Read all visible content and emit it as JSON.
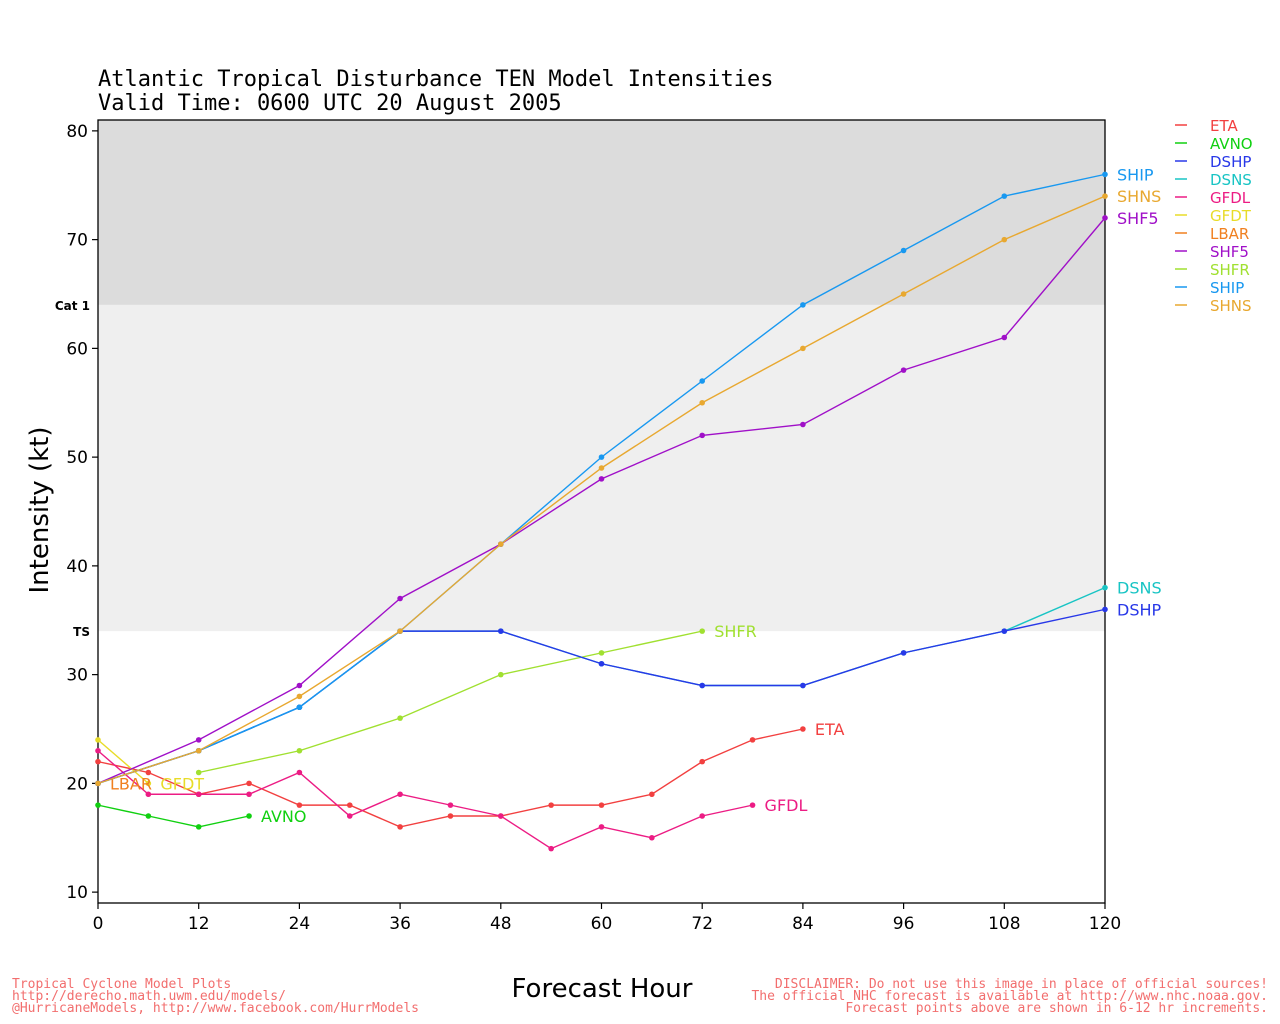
{
  "title_line1": "Atlantic Tropical Disturbance TEN Model Intensities",
  "title_line2": "Valid Time: 0600 UTC 20 August 2005",
  "footer": {
    "left": [
      "Tropical Cyclone Model Plots",
      "http://derecho.math.uwm.edu/models/",
      "@HurricaneModels, http://www.facebook.com/HurrModels"
    ],
    "right": [
      "DISCLAIMER: Do not use this image in place of official sources!",
      "The official NHC forecast is available at http://www.nhc.noaa.gov.",
      "Forecast points above are shown in 6-12 hr increments."
    ]
  },
  "chart_data": {
    "type": "line",
    "xlabel": "Forecast Hour",
    "ylabel": "Intensity (kt)",
    "xlim": [
      0,
      120
    ],
    "ylim": [
      9,
      81
    ],
    "x_ticks": [
      0,
      12,
      24,
      36,
      48,
      60,
      72,
      84,
      96,
      108,
      120
    ],
    "y_ticks": [
      10,
      20,
      30,
      40,
      50,
      60,
      70,
      80
    ],
    "bands": [
      {
        "label": "TS",
        "from": 34,
        "to": 64,
        "color": "#efefef"
      },
      {
        "label": "Cat 1",
        "from": 64,
        "to": 81,
        "color": "#dcdcdc"
      }
    ],
    "legend_position": "right",
    "legend": [
      {
        "name": "ETA",
        "color": "#f24040"
      },
      {
        "name": "AVNO",
        "color": "#10d010"
      },
      {
        "name": "DSHP",
        "color": "#2838e8"
      },
      {
        "name": "DSNS",
        "color": "#18c4c4"
      },
      {
        "name": "GFDL",
        "color": "#ec1c84"
      },
      {
        "name": "GFDT",
        "color": "#e8dc28"
      },
      {
        "name": "LBAR",
        "color": "#f08020"
      },
      {
        "name": "SHF5",
        "color": "#a010c8"
      },
      {
        "name": "SHFR",
        "color": "#a0e030"
      },
      {
        "name": "SHIP",
        "color": "#1898f0"
      },
      {
        "name": "SHNS",
        "color": "#e8a830"
      }
    ],
    "series": [
      {
        "name": "ETA",
        "color": "#f24040",
        "x": [
          0,
          6,
          12,
          18,
          24,
          30,
          36,
          42,
          48,
          54,
          60,
          66,
          72,
          78,
          84
        ],
        "y": [
          22,
          21,
          19,
          20,
          18,
          18,
          16,
          17,
          17,
          18,
          18,
          19,
          22,
          24,
          25
        ],
        "label": "ETA"
      },
      {
        "name": "AVNO",
        "color": "#10d010",
        "x": [
          0,
          6,
          12,
          18
        ],
        "y": [
          18,
          17,
          16,
          17
        ],
        "label": "AVNO"
      },
      {
        "name": "GFDL",
        "color": "#ec1c84",
        "x": [
          0,
          6,
          12,
          18,
          24,
          30,
          36,
          42,
          48,
          54,
          60,
          66,
          72,
          78
        ],
        "y": [
          23,
          19,
          19,
          19,
          21,
          17,
          19,
          18,
          17,
          14,
          16,
          15,
          17,
          18
        ],
        "label": "GFDL"
      },
      {
        "name": "GFDT",
        "color": "#e8dc28",
        "x": [
          0,
          6
        ],
        "y": [
          24,
          20
        ],
        "label": "GFDT"
      },
      {
        "name": "LBAR",
        "color": "#f08020",
        "x": [
          0
        ],
        "y": [
          20
        ],
        "label": "LBAR"
      },
      {
        "name": "SHFR",
        "color": "#a0e030",
        "x": [
          12,
          24,
          36,
          48,
          60,
          72
        ],
        "y": [
          21,
          23,
          26,
          30,
          32,
          34
        ],
        "label": "SHFR"
      },
      {
        "name": "DSNS",
        "color": "#18c4c4",
        "x": [
          0,
          12,
          24,
          36,
          48,
          60,
          72,
          84,
          96,
          108,
          120
        ],
        "y": [
          20,
          23,
          27,
          34,
          34,
          31,
          29,
          29,
          32,
          34,
          38
        ],
        "label": "DSNS"
      },
      {
        "name": "DSHP",
        "color": "#2838e8",
        "x": [
          0,
          12,
          24,
          36,
          48,
          60,
          72,
          84,
          96,
          108,
          120
        ],
        "y": [
          20,
          23,
          27,
          34,
          34,
          31,
          29,
          29,
          32,
          34,
          36
        ],
        "label": "DSHP"
      },
      {
        "name": "SHF5",
        "color": "#a010c8",
        "x": [
          0,
          12,
          24,
          36,
          48,
          60,
          72,
          84,
          96,
          108,
          120
        ],
        "y": [
          20,
          24,
          29,
          37,
          42,
          48,
          52,
          53,
          58,
          61,
          72
        ],
        "label": "SHF5"
      },
      {
        "name": "SHIP",
        "color": "#1898f0",
        "x": [
          0,
          12,
          24,
          36,
          48,
          60,
          72,
          84,
          96,
          108,
          120
        ],
        "y": [
          20,
          23,
          27,
          34,
          42,
          50,
          57,
          64,
          69,
          74,
          76
        ],
        "label": "SHIP"
      },
      {
        "name": "SHNS",
        "color": "#e8a830",
        "x": [
          0,
          12,
          24,
          36,
          48,
          60,
          72,
          84,
          96,
          108,
          120
        ],
        "y": [
          20,
          23,
          28,
          34,
          42,
          49,
          55,
          60,
          65,
          70,
          74
        ],
        "label": "SHNS"
      }
    ]
  }
}
